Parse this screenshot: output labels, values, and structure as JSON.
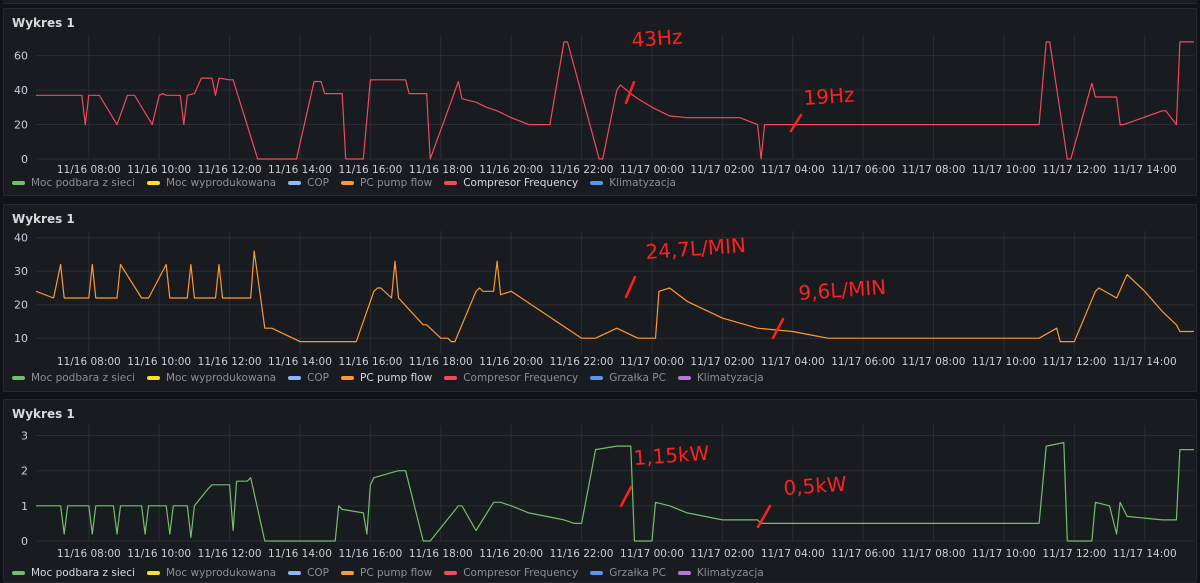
{
  "panels": [
    {
      "title": "Wykres 1",
      "legend": [
        {
          "label": "Moc podbara z sieci",
          "color": "#73bf69",
          "active": false
        },
        {
          "label": "Moc wyprodukowana",
          "color": "#fade2a",
          "active": false
        },
        {
          "label": "COP",
          "color": "#8ab8ff",
          "active": false
        },
        {
          "label": "PC pump flow",
          "color": "#ff9830",
          "active": false
        },
        {
          "label": "Compresor Frequency",
          "color": "#f2495c",
          "active": true
        },
        {
          "label": "Klimatyzacja",
          "color": "#5794f2",
          "active": false
        }
      ],
      "annotations": [
        {
          "text": "43Hz"
        },
        {
          "text": "19Hz"
        }
      ]
    },
    {
      "title": "Wykres 1",
      "legend": [
        {
          "label": "Moc podbara z sieci",
          "color": "#73bf69",
          "active": false
        },
        {
          "label": "Moc wyprodukowana",
          "color": "#fade2a",
          "active": false
        },
        {
          "label": "COP",
          "color": "#8ab8ff",
          "active": false
        },
        {
          "label": "PC pump flow",
          "color": "#ff9830",
          "active": true
        },
        {
          "label": "Compresor Frequency",
          "color": "#f2495c",
          "active": false
        },
        {
          "label": "Grzałka PC",
          "color": "#5794f2",
          "active": false
        },
        {
          "label": "Klimatyzacja",
          "color": "#b877d9",
          "active": false
        }
      ],
      "annotations": [
        {
          "text": "24,7L/MIN"
        },
        {
          "text": "9,6L/MIN"
        }
      ]
    },
    {
      "title": "Wykres 1",
      "legend": [
        {
          "label": "Moc podbara z sieci",
          "color": "#73bf69",
          "active": true
        },
        {
          "label": "Moc wyprodukowana",
          "color": "#fade2a",
          "active": false
        },
        {
          "label": "COP",
          "color": "#8ab8ff",
          "active": false
        },
        {
          "label": "PC pump flow",
          "color": "#ff9830",
          "active": false
        },
        {
          "label": "Compresor Frequency",
          "color": "#f2495c",
          "active": false
        },
        {
          "label": "Grzałka PC",
          "color": "#5794f2",
          "active": false
        },
        {
          "label": "Klimatyzacja",
          "color": "#b877d9",
          "active": false
        }
      ],
      "annotations": [
        {
          "text": "1,15kW"
        },
        {
          "text": "0,5kW"
        }
      ]
    }
  ],
  "chart_data": [
    {
      "type": "line",
      "xlabel": "",
      "ylabel": "",
      "x_tick_labels": [
        "11/16 08:00",
        "11/16 10:00",
        "11/16 12:00",
        "11/16 14:00",
        "11/16 16:00",
        "11/16 18:00",
        "11/16 20:00",
        "11/16 22:00",
        "11/17 00:00",
        "11/17 02:00",
        "11/17 04:00",
        "11/17 06:00",
        "11/17 08:00",
        "11/17 10:00",
        "11/17 12:00",
        "11/17 14:00"
      ],
      "x_range": [
        6.5,
        39.4
      ],
      "y_ticks": [
        0,
        20,
        40,
        60
      ],
      "ylim": [
        0,
        72
      ],
      "grid": true,
      "series": [
        {
          "name": "Compresor Frequency",
          "color": "#f2495c",
          "x": [
            6.5,
            7.8,
            7.9,
            8.0,
            8.1,
            8.3,
            8.8,
            9.1,
            9.2,
            9.3,
            9.8,
            10.0,
            10.1,
            10.2,
            10.6,
            10.7,
            10.8,
            11.0,
            11.2,
            11.5,
            11.6,
            11.7,
            12.0,
            12.1,
            12.8,
            12.9,
            13.0,
            13.8,
            13.9,
            14.4,
            14.6,
            14.7,
            15.2,
            15.3,
            15.7,
            15.8,
            16.0,
            17.0,
            17.1,
            17.2,
            17.6,
            17.7,
            18.5,
            18.6,
            19.0,
            19.3,
            19.6,
            20.0,
            20.5,
            21.0,
            21.1,
            21.5,
            21.6,
            22.5,
            22.6,
            23.0,
            23.1,
            23.4,
            23.6,
            24.0,
            24.5,
            25.0,
            26.0,
            26.5,
            27.0,
            27.1,
            27.2,
            27.3,
            28.0,
            29.0,
            31.0,
            33.0,
            35.0,
            35.2,
            35.3,
            35.8,
            35.9,
            36.5,
            36.6,
            37.0,
            37.1,
            37.2,
            37.3,
            37.4,
            38.5,
            38.6,
            38.9,
            39.0,
            39.4
          ],
          "y": [
            37,
            37,
            20,
            37,
            37,
            37,
            20,
            37,
            37,
            37,
            20,
            37,
            38,
            37,
            37,
            20,
            37,
            38,
            47,
            47,
            37,
            47,
            46,
            46,
            0,
            0,
            0,
            0,
            0,
            45,
            45,
            38,
            38,
            0,
            0,
            0,
            46,
            46,
            38,
            38,
            38,
            0,
            45,
            35,
            33,
            30,
            28,
            24,
            20,
            20,
            20,
            68,
            68,
            0,
            0,
            40,
            43,
            38,
            35,
            30,
            25,
            24,
            24,
            24,
            20,
            0,
            20,
            20,
            20,
            20,
            20,
            20,
            20,
            68,
            68,
            0,
            0,
            44,
            36,
            36,
            36,
            36,
            20,
            20,
            28,
            28,
            20,
            68,
            68
          ]
        }
      ]
    },
    {
      "type": "line",
      "xlabel": "",
      "ylabel": "",
      "x_tick_labels": [
        "11/16 08:00",
        "11/16 10:00",
        "11/16 12:00",
        "11/16 14:00",
        "11/16 16:00",
        "11/16 18:00",
        "11/16 20:00",
        "11/16 22:00",
        "11/17 00:00",
        "11/17 02:00",
        "11/17 04:00",
        "11/17 06:00",
        "11/17 08:00",
        "11/17 10:00",
        "11/17 12:00",
        "11/17 14:00"
      ],
      "x_range": [
        6.5,
        39.4
      ],
      "y_ticks": [
        10,
        20,
        30,
        40
      ],
      "ylim": [
        5,
        42
      ],
      "grid": true,
      "series": [
        {
          "name": "PC pump flow",
          "color": "#ff9830",
          "x": [
            6.5,
            7.0,
            7.2,
            7.3,
            7.4,
            8.0,
            8.1,
            8.2,
            8.7,
            8.8,
            8.9,
            9.5,
            9.6,
            9.7,
            10.2,
            10.3,
            10.4,
            10.8,
            10.9,
            11.0,
            11.5,
            11.6,
            11.7,
            11.8,
            12.0,
            12.6,
            12.7,
            13.0,
            13.1,
            13.2,
            14.0,
            15.0,
            15.2,
            15.6,
            16.1,
            16.2,
            16.3,
            16.6,
            16.7,
            16.8,
            17.5,
            17.6,
            18.0,
            18.2,
            18.3,
            18.4,
            19.0,
            19.1,
            19.2,
            19.5,
            19.6,
            19.7,
            20.0,
            21.0,
            22.0,
            22.4,
            23.0,
            23.6,
            24.0,
            24.1,
            24.2,
            24.5,
            25.0,
            26.0,
            27.0,
            28.0,
            28.5,
            29.0,
            30.0,
            32.0,
            34.0,
            35.0,
            35.5,
            35.6,
            36.0,
            36.6,
            36.7,
            37.2,
            37.5,
            38.0,
            38.5,
            38.9,
            39.0,
            39.4
          ],
          "y": [
            24,
            22,
            32,
            22,
            22,
            22,
            32,
            22,
            22,
            22,
            32,
            22,
            22,
            22,
            32,
            22,
            22,
            22,
            32,
            22,
            22,
            22,
            32,
            22,
            22,
            22,
            36,
            13,
            13,
            13,
            9,
            9,
            9,
            9,
            24,
            25,
            25,
            22,
            33,
            22,
            14,
            14,
            10,
            10,
            9,
            9,
            24,
            25,
            24,
            24,
            33,
            23,
            24,
            17,
            10,
            10,
            13,
            10,
            10,
            10,
            24,
            25,
            21,
            16,
            13,
            12,
            11,
            10,
            10,
            10,
            10,
            10,
            13,
            9,
            9,
            24,
            25,
            22,
            29,
            24,
            18,
            14,
            12,
            12
          ]
        }
      ]
    },
    {
      "type": "line",
      "xlabel": "",
      "ylabel": "",
      "x_tick_labels": [
        "11/16 08:00",
        "11/16 10:00",
        "11/16 12:00",
        "11/16 14:00",
        "11/16 16:00",
        "11/16 18:00",
        "11/16 20:00",
        "11/16 22:00",
        "11/17 00:00",
        "11/17 02:00",
        "11/17 04:00",
        "11/17 06:00",
        "11/17 08:00",
        "11/17 10:00",
        "11/17 12:00",
        "11/17 14:00"
      ],
      "x_range": [
        6.5,
        39.4
      ],
      "y_ticks": [
        0,
        1,
        2,
        3
      ],
      "ylim": [
        0,
        3.3
      ],
      "grid": true,
      "series": [
        {
          "name": "Moc podbara z sieci",
          "color": "#73bf69",
          "x": [
            6.5,
            7.2,
            7.3,
            7.4,
            8.0,
            8.1,
            8.2,
            8.7,
            8.8,
            8.9,
            9.5,
            9.6,
            9.7,
            10.2,
            10.3,
            10.4,
            10.8,
            10.9,
            11.0,
            11.4,
            11.5,
            12.0,
            12.1,
            12.2,
            12.5,
            12.6,
            13.0,
            13.1,
            14.0,
            14.5,
            15.0,
            15.1,
            15.2,
            15.8,
            15.9,
            16.0,
            16.1,
            16.8,
            17.0,
            17.5,
            17.6,
            17.7,
            18.5,
            18.6,
            19.0,
            19.5,
            19.7,
            20.0,
            20.5,
            21.5,
            21.8,
            22.0,
            22.4,
            23.0,
            23.4,
            23.5,
            24.0,
            24.1,
            24.5,
            25.0,
            26.0,
            27.0,
            27.1,
            27.2,
            28.0,
            29.0,
            31.0,
            33.0,
            35.0,
            35.2,
            35.7,
            35.8,
            36.5,
            36.6,
            37.0,
            37.2,
            37.3,
            37.5,
            38.5,
            38.9,
            39.0,
            39.4
          ],
          "y": [
            1.0,
            1.0,
            0.2,
            1.0,
            1.0,
            0.2,
            1.0,
            1.0,
            0.2,
            1.0,
            1.0,
            0.2,
            1.0,
            1.0,
            0.2,
            1.0,
            1.0,
            0.1,
            1.0,
            1.5,
            1.6,
            1.6,
            0.3,
            1.7,
            1.7,
            1.8,
            0.0,
            0.0,
            0.0,
            0.0,
            0.0,
            1.0,
            0.9,
            0.8,
            0.2,
            1.6,
            1.8,
            2.0,
            2.0,
            0.0,
            0.0,
            0.0,
            1.0,
            1.0,
            0.3,
            1.1,
            1.1,
            1.0,
            0.8,
            0.6,
            0.5,
            0.5,
            2.6,
            2.7,
            2.7,
            0.0,
            0.0,
            1.1,
            1.0,
            0.8,
            0.6,
            0.6,
            0.5,
            0.5,
            0.5,
            0.5,
            0.5,
            0.5,
            0.5,
            2.7,
            2.8,
            0.0,
            0.0,
            1.1,
            1.0,
            0.2,
            1.1,
            0.7,
            0.6,
            0.6,
            2.6,
            2.6
          ]
        }
      ]
    }
  ]
}
